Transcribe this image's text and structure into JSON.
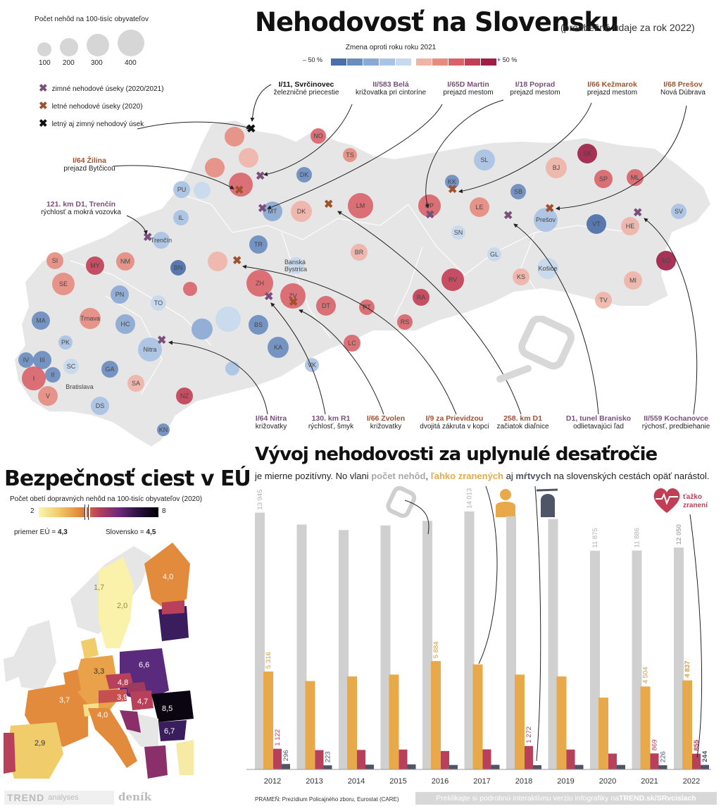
{
  "map_title": "Nehodovosť na Slovensku",
  "map_subtitle": "(predbežné údaje za rok 2022)",
  "bubble_legend": {
    "title": "Počet nehôd na 100-tisíc obyvateľov",
    "sizes": [
      "100",
      "200",
      "300",
      "400"
    ]
  },
  "change_legend": {
    "title": "Zmena oproti roku roku 2021",
    "min_label": "– 50 %",
    "max_label": "+ 50 %",
    "colors": [
      "#4a6ea8",
      "#6a8cbf",
      "#8aa9d4",
      "#a9c3e4",
      "#c7d9ee",
      "#f0b4a8",
      "#e68c80",
      "#d9636a",
      "#c23e55",
      "#9e1e45"
    ]
  },
  "symbol_legend": {
    "winter": "zimné nehodové úseky (2020/2021)",
    "summer": "letné nehodové úseky (2020)",
    "both": "letný aj zimný nehodový úsek"
  },
  "callouts_top": [
    {
      "title": "I/11, Svrčinovec",
      "desc": "železničné priecestie",
      "kind": "both"
    },
    {
      "title": "II/583 Belá",
      "desc": "križovatka pri cintoríne",
      "kind": "wint"
    },
    {
      "title": "I/65D Martin",
      "desc": "prejazd mestom",
      "kind": "wint"
    },
    {
      "title": "I/18 Poprad",
      "desc": "prejazd mestom",
      "kind": "wint"
    },
    {
      "title": "I/66 Kežmarok",
      "desc": "prejazd  mestom",
      "kind": "summ"
    },
    {
      "title": "I/68 Prešov",
      "desc": "Nová Dúbrava",
      "kind": "summ"
    }
  ],
  "callouts_left": [
    {
      "title": "I/64 Žilina",
      "desc": "prejazd Bytčicou",
      "kind": "summ"
    },
    {
      "title": "121. km D1, Trenčín",
      "desc": "rýchlosť a mokrá vozovka",
      "kind": "wint"
    }
  ],
  "callouts_bottom": [
    {
      "title": "I/64 Nitra",
      "desc": "križovatky",
      "kind": "wint"
    },
    {
      "title": "130. km R1",
      "desc": "rýchlosť, šmyk",
      "kind": "wint"
    },
    {
      "title": "I/66 Zvolen",
      "desc": "križovatky",
      "kind": "summ"
    },
    {
      "title": "I/9 za Prievidzou",
      "desc": "dvojitá zákruta v kopci",
      "kind": "summ"
    },
    {
      "title": "258. km D1",
      "desc": "začiatok diaľnice",
      "kind": "summ"
    },
    {
      "title": "D1, tunel Branisko",
      "desc": "odlietavajúci ľad",
      "kind": "wint"
    },
    {
      "title": "II/559 Kochanovce",
      "desc": "rýchosť, predbiehanie",
      "kind": "wint"
    }
  ],
  "districts": [
    "NO",
    "TS",
    "DK",
    "SL",
    "SK",
    "BJ",
    "SP",
    "ML",
    "PU",
    "KK",
    "SB",
    "IL",
    "MT",
    "DK",
    "LM",
    "PP",
    "LE",
    "Prešov",
    "VT",
    "HE",
    "SV",
    "Trenčín",
    "TR",
    "SN",
    "GL",
    "BN",
    "Košice",
    "SI",
    "MY",
    "NM",
    "Banská Bystrica",
    "BR",
    "SO",
    "SE",
    "ZH",
    "ZV",
    "KS",
    "PN",
    "DT",
    "RV",
    "MI",
    "TO",
    "PT",
    "RA",
    "TV",
    "MA",
    "Trnava",
    "HC",
    "BS",
    "RS",
    "PK",
    "KA",
    "LC",
    "Nitra",
    "IV",
    "III",
    "SC",
    "VK",
    "II",
    "GA",
    "I",
    "Bratislava",
    "SA",
    "V",
    "NZ",
    "DS",
    "KN"
  ],
  "eu": {
    "title": "Bezpečnosť ciest v EÚ",
    "subtitle": "Počet obetí dopravných nehôd na 100-tisíc obyvateľov (2020)",
    "scale_min": "2",
    "scale_max": "8",
    "avg_label": "priemer EÚ = ",
    "avg_value": "4,3",
    "sk_label": "Slovensko = ",
    "sk_value": "4,5",
    "values": [
      "1,7",
      "2,0",
      "4,0",
      "3,3",
      "6,6",
      "3,7",
      "4,8",
      "3,9",
      "4,7",
      "8,5",
      "4,0",
      "6,7",
      "2,9"
    ]
  },
  "trend": {
    "title": "Vývoj nehodovosti za uplynulé desaťročie",
    "sub_a": "je mierne pozitívny. No vlani ",
    "sub_b": "počet nehôd",
    "sub_c": ", ",
    "sub_d": "ľahko zranených",
    "sub_e": " aj ",
    "sub_f": "mŕtvych",
    "sub_g": " na slovenských cestách opäť narástol.",
    "badge": "ťažko zranení"
  },
  "chart_data": {
    "type": "bar",
    "categories": [
      "2012",
      "2013",
      "2014",
      "2015",
      "2016",
      "2017",
      "2018",
      "2019",
      "2020",
      "2021",
      "2022"
    ],
    "series": [
      {
        "name": "počet nehôd",
        "values": [
          13945,
          13300,
          13000,
          13250,
          13500,
          14013,
          13750,
          13600,
          11875,
          11886,
          12050
        ],
        "color": "#d0d0d0"
      },
      {
        "name": "ľahko zranených",
        "values": [
          5316,
          4800,
          5050,
          5150,
          5884,
          5700,
          5150,
          5050,
          3900,
          4504,
          4837
        ],
        "color": "#e8a94a"
      },
      {
        "name": "ťažko zranení",
        "values": [
          1122,
          1050,
          1060,
          1080,
          1000,
          1090,
          1272,
          1080,
          860,
          869,
          855
        ],
        "color": "#b8405a"
      },
      {
        "name": "mŕtvych",
        "values": [
          296,
          223,
          260,
          275,
          242,
          250,
          229,
          245,
          245,
          226,
          244
        ],
        "color": "#4d5566"
      }
    ],
    "value_labels": {
      "0": [
        "13 945",
        "5 316",
        "1 122",
        "296"
      ],
      "1": [
        "",
        "",
        "",
        "223"
      ],
      "4": [
        "",
        "5 884",
        "",
        ""
      ],
      "5": [
        "14 013",
        "",
        "",
        ""
      ],
      "6": [
        "",
        "",
        "1 272",
        ""
      ],
      "8": [
        "11 875",
        "",
        "",
        ""
      ],
      "9": [
        "11 886",
        "4 504",
        "869",
        "226"
      ],
      "10": [
        "12 050",
        "4 837",
        "855",
        "244"
      ]
    },
    "ylim": [
      0,
      15000
    ]
  },
  "footer": {
    "source": "PRAMEŇ: Prezídium Policajného zboru, Eurostat (CARE)",
    "cta_a": "Preklikajte si podrobnú interaktívnu verziu infografiky na ",
    "cta_b": "TREND.sk/SRvcislach",
    "brand1": "TREND",
    "brand1b": "analyses",
    "brand2": "deník"
  }
}
